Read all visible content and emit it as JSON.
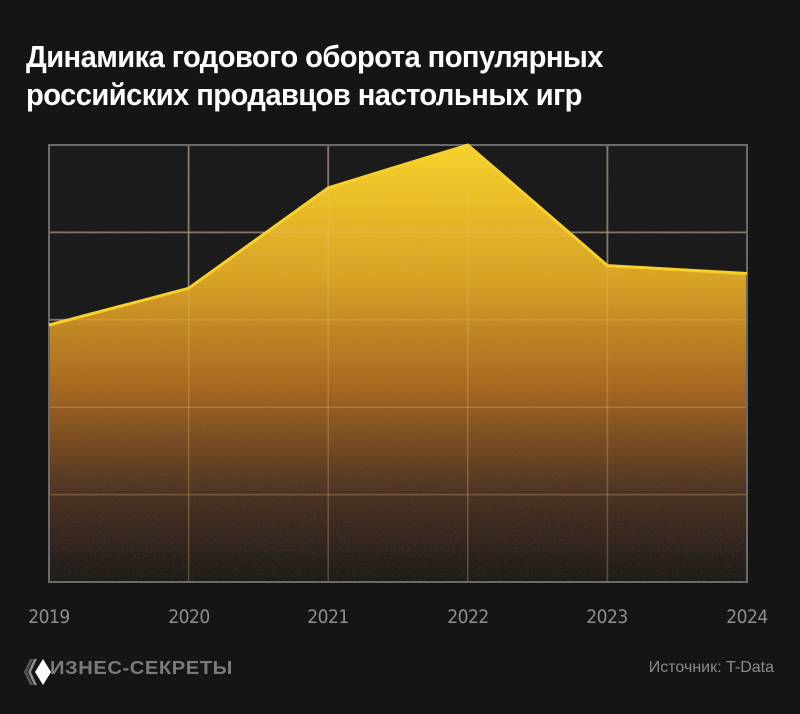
{
  "header": {
    "title_line1": "Динамика годового оборота популярных",
    "title_line2": "российских продавцов настольных игр"
  },
  "footer": {
    "brand": "ИЗНЕС-СЕКРЕТЫ",
    "brand_icon": "diamond-stack-logo-icon",
    "source": "Источник: T-Data"
  },
  "colors": {
    "background": "#151515",
    "grid": "#5a5a5a",
    "line": "#f7d12a",
    "fill_top": "#f5c81e",
    "fill_mid": "#a8681f",
    "fill_bottom": "#1c1917",
    "axis_label": "#8e8e8e"
  },
  "chart_data": {
    "type": "area",
    "title": "Динамика годового оборота популярных российских продавцов настольных игр",
    "xlabel": "",
    "ylabel": "",
    "categories": [
      "2019",
      "2020",
      "2021",
      "2022",
      "2023",
      "2024"
    ],
    "values": [
      2.94,
      3.36,
      4.51,
      5.0,
      3.62,
      3.53
    ],
    "value_units": "relative (gridline units; no y-axis labels shown)",
    "ylim": [
      0,
      5
    ],
    "grid": true,
    "horizontal_gridlines": 6,
    "vertical_gridlines": 6,
    "legend": null,
    "source": "T-Data"
  }
}
